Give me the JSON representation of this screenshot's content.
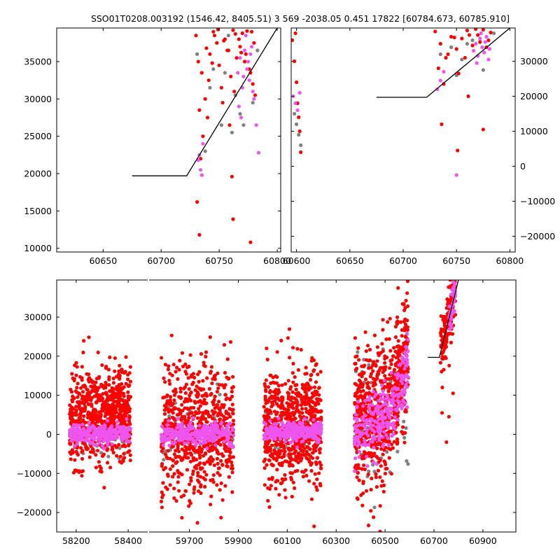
{
  "figure": {
    "title": "SSO01T0208.003192 (1546.42, 8405.51)  3 569 -2038.05 0.451 17822 [60784.673, 60785.910]"
  },
  "colors": {
    "red": "#ff0000",
    "magenta": "#ee55ee",
    "gray": "#808080",
    "line": "#000000"
  },
  "chart_data": [
    {
      "type": "scatter",
      "panel": "top-left",
      "x_range": [
        60610,
        60803
      ],
      "ylim": [
        9500,
        39500
      ],
      "x_ticks": [
        60650,
        60700,
        60750,
        60800
      ],
      "x_tick_labels": [
        "60650",
        "60700",
        "60750",
        "60800"
      ],
      "y_ticks": [
        10000,
        15000,
        20000,
        25000,
        30000,
        35000
      ],
      "y_tick_labels": [
        "10000",
        "15000",
        "20000",
        "25000",
        "30000",
        "35000"
      ],
      "y_axis_side": "left",
      "model_line": [
        [
          60675,
          19700
        ],
        [
          60722,
          19700
        ],
        [
          60800,
          39500
        ]
      ],
      "series": [
        {
          "color": "red",
          "x": [
            60730,
            60732,
            60735,
            60738,
            60740,
            60742,
            60745,
            60748,
            60750,
            60752,
            60755,
            60758,
            60760,
            60762,
            60765,
            60768,
            60770,
            60773,
            60776,
            60778,
            60780,
            60733,
            60736,
            60741,
            60746,
            60753,
            60757,
            60763,
            60767,
            60772,
            60777,
            60781,
            60734,
            60739,
            60744,
            60749,
            60754,
            60759,
            60764,
            60769,
            60774,
            60779,
            60731,
            60762,
            60777,
            60733,
            60761
          ],
          "y": [
            38500,
            35000,
            33500,
            30000,
            27500,
            36000,
            39000,
            37500,
            34500,
            31500,
            38000,
            36500,
            33000,
            39200,
            35500,
            37000,
            38800,
            36000,
            34000,
            39000,
            37500,
            28500,
            25000,
            32500,
            38500,
            29500,
            36500,
            31000,
            38000,
            35000,
            33500,
            30500,
            22000,
            36800,
            34800,
            39300,
            37800,
            26500,
            38700,
            36200,
            39100,
            32000,
            16200,
            13900,
            10800,
            11800,
            19600
          ]
        },
        {
          "color": "magenta",
          "x": [
            60732,
            60734,
            60736,
            60766,
            60768,
            60770,
            60772,
            60774,
            60776,
            60778,
            60780,
            60767,
            60771,
            60775,
            60779,
            60769,
            60773,
            60777,
            60733,
            60735,
            60782,
            60784
          ],
          "y": [
            21800,
            20500,
            24000,
            33500,
            35500,
            31500,
            36500,
            34000,
            32500,
            37000,
            30000,
            29000,
            33000,
            35000,
            31000,
            27500,
            38500,
            36000,
            22500,
            19800,
            26500,
            22800
          ]
        },
        {
          "color": "gray",
          "x": [
            60731,
            60738,
            60745,
            60752,
            60758,
            60764,
            60771,
            60779,
            60742,
            60755,
            60768,
            60783,
            60748,
            60761
          ],
          "y": [
            36000,
            23000,
            34000,
            26500,
            38500,
            30500,
            26500,
            29500,
            31500,
            33500,
            28000,
            36500,
            37500,
            25500
          ]
        }
      ]
    },
    {
      "type": "scatter",
      "panel": "top-right",
      "x_range": [
        60595,
        60805
      ],
      "ylim": [
        -24500,
        39500
      ],
      "x_ticks": [
        60600,
        60650,
        60700,
        60750,
        60800
      ],
      "x_tick_labels": [
        "60600",
        "60650",
        "60700",
        "60750",
        "60800"
      ],
      "y_ticks": [
        -20000,
        -10000,
        0,
        10000,
        20000,
        30000
      ],
      "y_tick_labels": [
        "−20000",
        "−10000",
        "0",
        "10000",
        "20000",
        "30000"
      ],
      "y_axis_side": "right",
      "model_line": [
        [
          60675,
          19700
        ],
        [
          60722,
          19700
        ],
        [
          60800,
          39500
        ]
      ],
      "series": [
        {
          "color": "red",
          "x": [
            60596,
            60598,
            60600,
            60602,
            60604,
            60599,
            60601,
            60603,
            60730,
            60735,
            60740,
            60745,
            60750,
            60755,
            60760,
            60765,
            60770,
            60775,
            60780,
            60733,
            60742,
            60752,
            60762,
            60772,
            60782,
            60738,
            60748,
            60758,
            60768,
            60778,
            60736,
            60761,
            60775,
            60751
          ],
          "y": [
            36000,
            30000,
            24000,
            14000,
            4000,
            38000,
            18000,
            10000,
            38500,
            35000,
            31000,
            37000,
            33500,
            36500,
            38800,
            34500,
            37500,
            39000,
            36000,
            28000,
            32000,
            26500,
            37500,
            35500,
            38200,
            23500,
            36800,
            31000,
            39200,
            34000,
            12000,
            20000,
            10500,
            4500
          ]
        },
        {
          "color": "magenta",
          "x": [
            60597,
            60599,
            60601,
            60603,
            60766,
            60768,
            60770,
            60772,
            60774,
            60776,
            60778,
            60780,
            60732,
            60735,
            60738,
            60769,
            60773,
            60777,
            60781,
            60750
          ],
          "y": [
            20000,
            18000,
            16000,
            21000,
            33000,
            35000,
            31500,
            36500,
            34000,
            32500,
            37000,
            30500,
            22000,
            24500,
            27000,
            29500,
            38000,
            35500,
            33500,
            -2500
          ]
        },
        {
          "color": "gray",
          "x": [
            60598,
            60600,
            60602,
            60604,
            60745,
            60755,
            60765,
            60775,
            60735,
            60785,
            60750,
            60760
          ],
          "y": [
            15000,
            12000,
            9000,
            6000,
            34000,
            30500,
            36000,
            27500,
            32000,
            38000,
            26000,
            35000
          ]
        }
      ]
    },
    {
      "type": "scatter",
      "panel": "bottom",
      "ylim": [
        -25000,
        39500
      ],
      "y_ticks": [
        -20000,
        -10000,
        0,
        10000,
        20000,
        30000
      ],
      "y_tick_labels": [
        "−20000",
        "−10000",
        "0",
        "10000",
        "20000",
        "30000"
      ],
      "y_axis_side": "left",
      "sub_axes": [
        {
          "x_range": [
            58125,
            58475
          ],
          "x_ticks": [
            58200,
            58400
          ],
          "x_tick_labels": [
            "58200",
            "58400"
          ]
        },
        {
          "x_range": [
            59535,
            61035
          ],
          "x_ticks": [
            59700,
            59900,
            60100,
            60300,
            60500,
            60700,
            60900
          ],
          "x_tick_labels": [
            "59700",
            "59900",
            "60100",
            "60300",
            "60500",
            "60700",
            "60900"
          ]
        }
      ],
      "observing_seasons": [
        {
          "x_range": [
            58175,
            58410
          ],
          "red_center": 5000,
          "red_spread": 8000,
          "magenta_center": 0,
          "magenta_spread": 1200
        },
        {
          "x_range": [
            59585,
            59880
          ],
          "red_center": 1500,
          "red_spread": 11000,
          "magenta_center": 0,
          "magenta_spread": 1500
        },
        {
          "x_range": [
            60005,
            60240
          ],
          "red_center": 2000,
          "red_spread": 10000,
          "magenta_center": 500,
          "magenta_spread": 1300
        },
        {
          "x_range": [
            60375,
            60595
          ],
          "red_center": 6500,
          "red_spread": 11000,
          "magenta_center": 4000,
          "magenta_spread": 4000
        }
      ],
      "model_line": [
        [
          60675,
          19700
        ],
        [
          60722,
          19700
        ],
        [
          60800,
          39500
        ]
      ],
      "cluster_near_model": {
        "x_range": [
          60725,
          60790
        ],
        "y_range": [
          18000,
          39500
        ]
      }
    }
  ]
}
